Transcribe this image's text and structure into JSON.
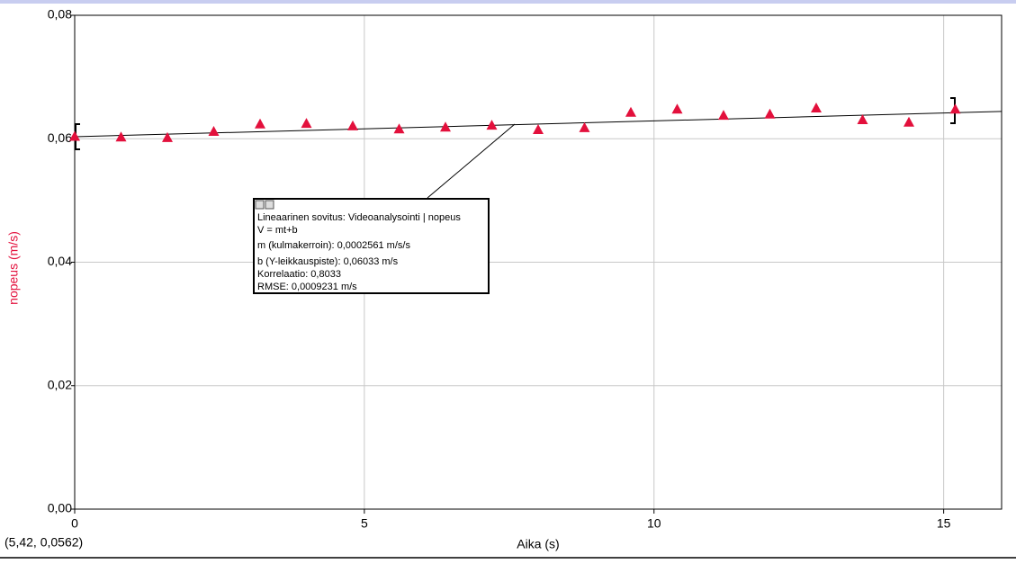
{
  "chart_data": {
    "type": "scatter",
    "x_label": "Aika (s)",
    "y_label": "nopeus (m/s)",
    "xlim": [
      0,
      16
    ],
    "ylim": [
      0,
      0.08
    ],
    "xticks": [
      0,
      5,
      10,
      15
    ],
    "yticks": [
      {
        "value": 0,
        "label": "0,00"
      },
      {
        "value": 0.02,
        "label": "0,02"
      },
      {
        "value": 0.04,
        "label": "0,04"
      },
      {
        "value": 0.06,
        "label": "0,06"
      },
      {
        "value": 0.08,
        "label": "0,08"
      }
    ],
    "grid": true,
    "cursor_readout": "(5,42, 0,0562)",
    "series": [
      {
        "name": "nopeus",
        "color": "#e3103c",
        "x": [
          0,
          0.8,
          1.6,
          2.4,
          3.2,
          4.0,
          4.8,
          5.6,
          6.4,
          7.2,
          8.0,
          8.8,
          9.6,
          10.4,
          11.2,
          12.0,
          12.8,
          13.6,
          14.4,
          15.2
        ],
        "values": [
          0.0604,
          0.0603,
          0.0602,
          0.0612,
          0.0624,
          0.0625,
          0.0621,
          0.0616,
          0.0619,
          0.0622,
          0.0615,
          0.0618,
          0.0643,
          0.0648,
          0.0638,
          0.064,
          0.065,
          0.0631,
          0.0627,
          0.0648
        ]
      }
    ],
    "fit": {
      "title": "Lineaarinen sovitus: Videoanalysointi | nopeus",
      "equation": "V = mt+b",
      "slope": {
        "value": 0.0002561,
        "label": "m (kulmakerroin): 0,0002561 m/s/s"
      },
      "intercept": {
        "value": 0.06033,
        "label": "b (Y-leikkauspiste): 0,06033 m/s"
      },
      "correlation": "Korrelaatio: 0,8033",
      "rmse": "RMSE: 0,0009231 m/s"
    }
  }
}
